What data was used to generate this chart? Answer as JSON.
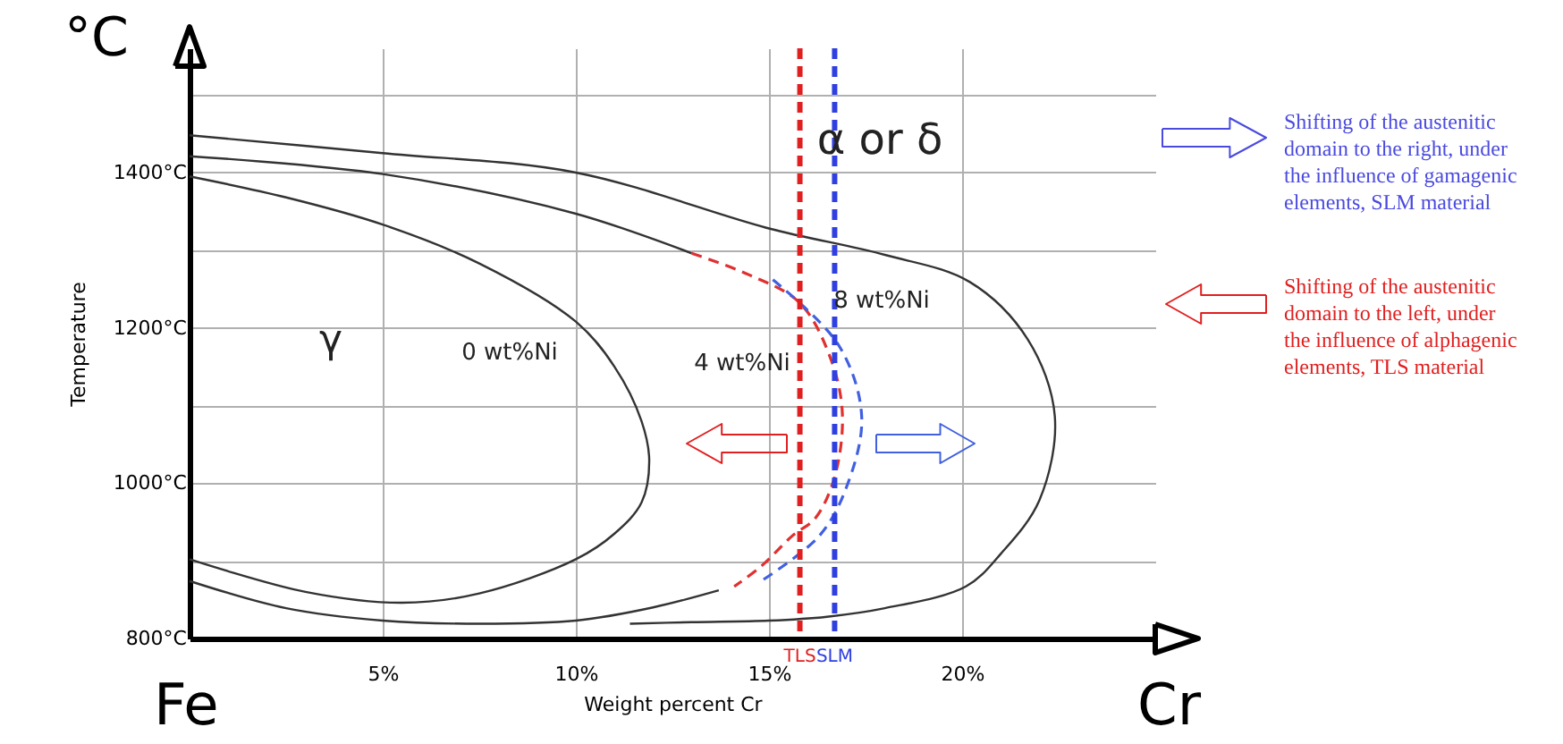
{
  "chart_data": {
    "type": "line",
    "xlabel": "Weight percent Cr",
    "ylabel": "Temperature",
    "xlim": [
      0,
      25
    ],
    "ylim": [
      800,
      1560
    ],
    "xticks": [
      {
        "value": 5,
        "label": "5%"
      },
      {
        "value": 10,
        "label": "10%"
      },
      {
        "value": 15,
        "label": "15%"
      },
      {
        "value": 20,
        "label": "20%"
      }
    ],
    "yticks": [
      {
        "value": 800,
        "label": "800°C"
      },
      {
        "value": 900,
        "label": null
      },
      {
        "value": 1000,
        "label": "1000°C"
      },
      {
        "value": 1100,
        "label": null
      },
      {
        "value": 1200,
        "label": "1200°C"
      },
      {
        "value": 1300,
        "label": null
      },
      {
        "value": 1400,
        "label": "1400°C"
      },
      {
        "value": 1500,
        "label": null
      }
    ],
    "grid": true,
    "marker": "none",
    "series": [
      {
        "color": "#333333",
        "line_style": "solid",
        "x": [
          0,
          2.5,
          5,
          7.5,
          10,
          11,
          11.7,
          11.9,
          11.7,
          11,
          10,
          7.5,
          5.5,
          3,
          0
        ],
        "values": [
          1395,
          1368,
          1333,
          1283,
          1208,
          1150,
          1080,
          1029,
          975,
          935,
          902,
          858,
          846,
          860,
          902
        ]
      },
      {
        "color": "#333333",
        "line_style": "solid",
        "x": [
          0,
          5,
          10,
          13
        ],
        "values": [
          1421,
          1398,
          1347,
          1296
        ]
      },
      {
        "color": "#333333",
        "line_style": "solid",
        "x": [
          0,
          2.5,
          5,
          7.5,
          10,
          12,
          13.7
        ],
        "values": [
          874,
          839,
          823,
          819,
          823,
          840,
          862
        ]
      },
      {
        "color": "#e03030",
        "line_style": "dashed",
        "x": [
          13,
          14.5,
          15.8,
          16.6,
          16.9,
          16.7,
          16.2,
          15.6,
          14.8,
          14.1
        ],
        "values": [
          1296,
          1268,
          1232,
          1160,
          1089,
          1008,
          955,
          932,
          893,
          867
        ]
      },
      {
        "color": "#4060e0",
        "line_style": "dashed",
        "x": [
          15.1,
          16.8,
          17.4,
          17.0,
          16.3,
          14.8
        ],
        "values": [
          1262,
          1178,
          1086,
          994,
          932,
          874
        ]
      },
      {
        "color": "#333333",
        "line_style": "solid",
        "x": [
          0,
          5,
          10,
          15,
          18,
          20.2,
          21.7,
          22.4,
          22.0,
          21,
          20.1,
          18,
          16.5,
          15,
          13,
          11.4
        ],
        "values": [
          1448,
          1425,
          1400,
          1328,
          1294,
          1259,
          1185,
          1086,
          978,
          909,
          867,
          839,
          828,
          823,
          821,
          819
        ]
      }
    ],
    "ref_lines": [
      {
        "axis": "x",
        "value": 15.8,
        "label": "TLS",
        "color": "#e02020",
        "line_style": "dashed"
      },
      {
        "axis": "x",
        "value": 16.7,
        "label": "SLM",
        "color": "#3040e0",
        "line_style": "dashed"
      }
    ],
    "annotations": [
      "°C",
      "Fe",
      "Cr",
      "γ",
      "α or δ",
      "0 wt%Ni",
      "4 wt%Ni",
      "8 wt%Ni",
      "Shifting of the austenitic domain to the right, under the influence of gamagenic elements, SLM material",
      "Shifting of the austenitic domain to the left, under the influence of alphagenic elements, TLS material"
    ]
  }
}
